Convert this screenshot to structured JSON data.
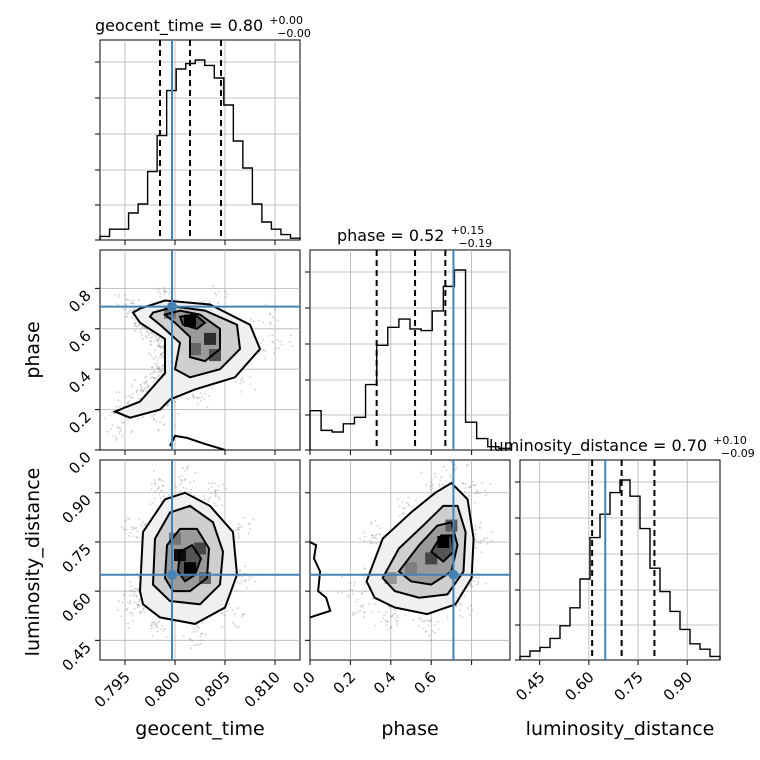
{
  "chart_data": {
    "type": "corner",
    "parameters": [
      "geocent_time",
      "phase",
      "luminosity_distance"
    ],
    "axis_labels": {
      "geocent_time": "geocent_time",
      "phase": "phase",
      "luminosity_distance": "luminosity_distance"
    },
    "ranges": {
      "geocent_time": [
        0.7925,
        0.8125
      ],
      "phase": [
        0.0,
        0.99
      ],
      "luminosity_distance": [
        0.39,
        1.0
      ]
    },
    "ticks": {
      "geocent_time": [
        "0.795",
        "0.800",
        "0.805",
        "0.810"
      ],
      "phase": [
        "0.0",
        "0.2",
        "0.4",
        "0.6",
        "0.8"
      ],
      "luminosity_distance": [
        "0.45",
        "0.60",
        "0.75",
        "0.90"
      ]
    },
    "tick_values": {
      "geocent_time": [
        0.795,
        0.8,
        0.805,
        0.81
      ],
      "phase": [
        0.0,
        0.2,
        0.4,
        0.6,
        0.8
      ],
      "luminosity_distance": [
        0.45,
        0.6,
        0.75,
        0.9
      ]
    },
    "phase_row_ticks": [
      "0.0",
      "0.2",
      "0.4",
      "0.6",
      "0.8"
    ],
    "phase_col_ticks": [
      "0.0",
      "0.2",
      "0.4",
      "0.6"
    ],
    "truths": {
      "geocent_time": 0.7997,
      "phase": 0.71,
      "luminosity_distance": 0.65
    },
    "titles": {
      "geocent_time": {
        "text": "geocent_time = 0.80",
        "plus": "+0.00",
        "minus": "−0.00"
      },
      "phase": {
        "text": "phase = 0.52",
        "plus": "+0.15",
        "minus": "−0.19"
      },
      "luminosity_distance": {
        "text": "luminosity_distance = 0.70",
        "plus": "+0.10",
        "minus": "−0.09"
      }
    },
    "quantiles": {
      "geocent_time": [
        0.7985,
        0.8015,
        0.8046
      ],
      "phase": [
        0.33,
        0.52,
        0.67
      ],
      "luminosity_distance": [
        0.61,
        0.7,
        0.8
      ]
    },
    "histograms": {
      "geocent_time": [
        0.02,
        0.06,
        0.06,
        0.15,
        0.2,
        0.38,
        0.58,
        0.83,
        0.95,
        0.98,
        1.0,
        0.97,
        0.9,
        0.75,
        0.55,
        0.4,
        0.2,
        0.1,
        0.06,
        0.03,
        0.01
      ],
      "phase": [
        0.24,
        0.12,
        0.11,
        0.16,
        0.2,
        0.4,
        0.64,
        0.75,
        0.8,
        0.74,
        0.73,
        0.85,
        1.0,
        1.1,
        0.17,
        0.07,
        0.02,
        0.01
      ],
      "luminosity_distance": [
        0.02,
        0.05,
        0.07,
        0.12,
        0.19,
        0.29,
        0.45,
        0.68,
        0.81,
        0.93,
        1.0,
        0.91,
        0.73,
        0.51,
        0.38,
        0.27,
        0.17,
        0.09,
        0.06,
        0.02
      ]
    },
    "contours": {
      "phase_vs_geocent_time": [
        [
          [
            0.7965,
            0.7
          ],
          [
            0.799,
            0.74
          ],
          [
            0.8035,
            0.72
          ],
          [
            0.8075,
            0.62
          ],
          [
            0.8085,
            0.5
          ],
          [
            0.806,
            0.36
          ],
          [
            0.802,
            0.3
          ],
          [
            0.7995,
            0.25
          ],
          [
            0.7985,
            0.2
          ],
          [
            0.7955,
            0.16
          ],
          [
            0.794,
            0.19
          ],
          [
            0.7965,
            0.24
          ],
          [
            0.799,
            0.38
          ],
          [
            0.799,
            0.55
          ],
          [
            0.7965,
            0.63
          ],
          [
            0.7958,
            0.68
          ]
        ],
        [
          [
            0.7978,
            0.68
          ],
          [
            0.8,
            0.71
          ],
          [
            0.803,
            0.69
          ],
          [
            0.8062,
            0.62
          ],
          [
            0.8065,
            0.5
          ],
          [
            0.8045,
            0.4
          ],
          [
            0.8015,
            0.36
          ],
          [
            0.8,
            0.4
          ],
          [
            0.8005,
            0.53
          ],
          [
            0.7985,
            0.62
          ],
          [
            0.7975,
            0.66
          ]
        ],
        [
          [
            0.799,
            0.67
          ],
          [
            0.8005,
            0.69
          ],
          [
            0.8025,
            0.67
          ],
          [
            0.8045,
            0.6
          ],
          [
            0.8045,
            0.5
          ],
          [
            0.803,
            0.44
          ],
          [
            0.8015,
            0.46
          ],
          [
            0.8015,
            0.56
          ],
          [
            0.8,
            0.63
          ]
        ],
        [
          [
            0.8005,
            0.66
          ],
          [
            0.802,
            0.67
          ],
          [
            0.803,
            0.63
          ],
          [
            0.8022,
            0.6
          ],
          [
            0.8008,
            0.62
          ]
        ],
        [
          [
            0.7995,
            0.02
          ],
          [
            0.8,
            0.07
          ],
          [
            0.8012,
            0.06
          ],
          [
            0.803,
            0.03
          ],
          [
            0.805,
            0.0
          ]
        ]
      ],
      "luminosity_distance_vs_geocent_time": [
        [
          [
            0.7965,
            0.6
          ],
          [
            0.7968,
            0.78
          ],
          [
            0.799,
            0.88
          ],
          [
            0.801,
            0.9
          ],
          [
            0.8035,
            0.86
          ],
          [
            0.8058,
            0.78
          ],
          [
            0.8062,
            0.65
          ],
          [
            0.805,
            0.55
          ],
          [
            0.802,
            0.5
          ],
          [
            0.7985,
            0.52
          ],
          [
            0.7968,
            0.56
          ]
        ],
        [
          [
            0.7978,
            0.62
          ],
          [
            0.798,
            0.76
          ],
          [
            0.7995,
            0.84
          ],
          [
            0.8015,
            0.86
          ],
          [
            0.8038,
            0.81
          ],
          [
            0.8048,
            0.72
          ],
          [
            0.8045,
            0.62
          ],
          [
            0.8025,
            0.56
          ],
          [
            0.7995,
            0.57
          ]
        ],
        [
          [
            0.799,
            0.64
          ],
          [
            0.7992,
            0.74
          ],
          [
            0.8005,
            0.79
          ],
          [
            0.8022,
            0.79
          ],
          [
            0.8034,
            0.73
          ],
          [
            0.8032,
            0.64
          ],
          [
            0.8015,
            0.6
          ],
          [
            0.7998,
            0.6
          ]
        ],
        [
          [
            0.8003,
            0.66
          ],
          [
            0.8005,
            0.72
          ],
          [
            0.8017,
            0.74
          ],
          [
            0.8026,
            0.7
          ],
          [
            0.802,
            0.65
          ],
          [
            0.801,
            0.63
          ]
        ]
      ],
      "luminosity_distance_vs_phase": [
        [
          [
            0.28,
            0.63
          ],
          [
            0.36,
            0.76
          ],
          [
            0.5,
            0.84
          ],
          [
            0.62,
            0.9
          ],
          [
            0.7,
            0.93
          ],
          [
            0.78,
            0.88
          ],
          [
            0.81,
            0.76
          ],
          [
            0.8,
            0.64
          ],
          [
            0.72,
            0.56
          ],
          [
            0.58,
            0.53
          ],
          [
            0.42,
            0.55
          ],
          [
            0.32,
            0.58
          ]
        ],
        [
          [
            0.36,
            0.64
          ],
          [
            0.44,
            0.73
          ],
          [
            0.56,
            0.8
          ],
          [
            0.66,
            0.86
          ],
          [
            0.73,
            0.86
          ],
          [
            0.77,
            0.78
          ],
          [
            0.76,
            0.66
          ],
          [
            0.68,
            0.59
          ],
          [
            0.54,
            0.58
          ],
          [
            0.42,
            0.6
          ]
        ],
        [
          [
            0.44,
            0.66
          ],
          [
            0.54,
            0.74
          ],
          [
            0.63,
            0.8
          ],
          [
            0.7,
            0.81
          ],
          [
            0.73,
            0.74
          ],
          [
            0.7,
            0.66
          ],
          [
            0.6,
            0.62
          ],
          [
            0.5,
            0.63
          ]
        ],
        [
          [
            0.6,
            0.72
          ],
          [
            0.65,
            0.77
          ],
          [
            0.7,
            0.77
          ],
          [
            0.71,
            0.72
          ],
          [
            0.66,
            0.69
          ]
        ],
        [
          [
            0.0,
            0.75
          ],
          [
            0.03,
            0.74
          ],
          [
            0.02,
            0.7
          ],
          [
            0.05,
            0.66
          ],
          [
            0.04,
            0.6
          ],
          [
            0.08,
            0.58
          ],
          [
            0.1,
            0.54
          ],
          [
            0.0,
            0.52
          ]
        ]
      ]
    },
    "density_blobs": {
      "phase_vs_geocent_time": [
        [
          0.8015,
          0.64,
          1.0
        ],
        [
          0.8035,
          0.55,
          0.8
        ],
        [
          0.804,
          0.47,
          0.65
        ],
        [
          0.802,
          0.5,
          0.55
        ],
        [
          0.7995,
          0.68,
          0.5
        ]
      ],
      "luminosity_distance_vs_geocent_time": [
        [
          0.8005,
          0.71,
          0.95
        ],
        [
          0.8015,
          0.67,
          1.0
        ],
        [
          0.8025,
          0.73,
          0.7
        ],
        [
          0.8,
          0.76,
          0.5
        ],
        [
          0.803,
          0.64,
          0.55
        ]
      ],
      "luminosity_distance_vs_phase": [
        [
          0.66,
          0.75,
          1.0
        ],
        [
          0.6,
          0.7,
          0.7
        ],
        [
          0.7,
          0.8,
          0.6
        ],
        [
          0.5,
          0.67,
          0.45
        ],
        [
          0.4,
          0.64,
          0.35
        ]
      ]
    }
  }
}
